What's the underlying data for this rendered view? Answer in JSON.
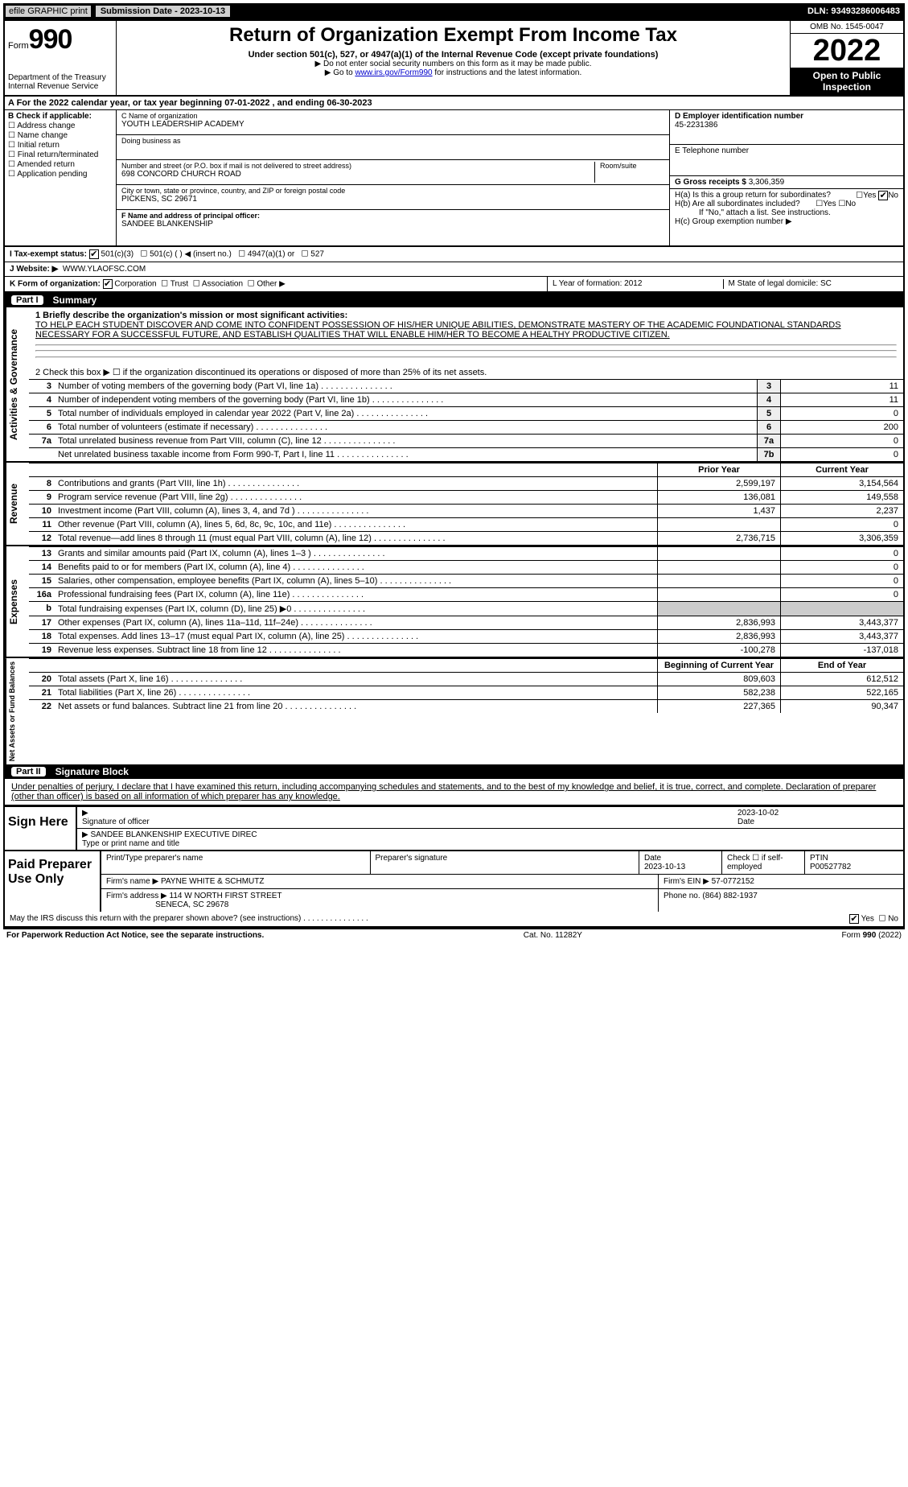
{
  "top": {
    "efile": "efile GRAPHIC print",
    "sub_label": "Submission Date - 2023-10-13",
    "dln": "DLN: 93493286006483"
  },
  "header": {
    "form_label": "Form",
    "form_number": "990",
    "dept1": "Department of the Treasury",
    "dept2": "Internal Revenue Service",
    "title": "Return of Organization Exempt From Income Tax",
    "subtitle": "Under section 501(c), 527, or 4947(a)(1) of the Internal Revenue Code (except private foundations)",
    "note1": "▶ Do not enter social security numbers on this form as it may be made public.",
    "note2_pre": "▶ Go to ",
    "note2_link": "www.irs.gov/Form990",
    "note2_post": " for instructions and the latest information.",
    "omb": "OMB No. 1545-0047",
    "year": "2022",
    "open": "Open to Public Inspection"
  },
  "line_a": {
    "text": "A For the 2022 calendar year, or tax year beginning 07-01-2022     , and ending 06-30-2023"
  },
  "col_b": {
    "head": "B Check if applicable:",
    "opts": [
      "Address change",
      "Name change",
      "Initial return",
      "Final return/terminated",
      "Amended return",
      "Application pending"
    ]
  },
  "col_c": {
    "name_lbl": "C Name of organization",
    "name": "YOUTH LEADERSHIP ACADEMY",
    "dba_lbl": "Doing business as",
    "addr_lbl": "Number and street (or P.O. box if mail is not delivered to street address)",
    "room_lbl": "Room/suite",
    "addr": "698 CONCORD CHURCH ROAD",
    "city_lbl": "City or town, state or province, country, and ZIP or foreign postal code",
    "city": "PICKENS, SC  29671",
    "f_lbl": "F Name and address of principal officer:",
    "f_name": "SANDEE BLANKENSHIP"
  },
  "col_right": {
    "d_lbl": "D Employer identification number",
    "d_val": "45-2231386",
    "e_lbl": "E Telephone number",
    "g_lbl": "G Gross receipts $",
    "g_val": "3,306,359",
    "h_a": "H(a)  Is this a group return for subordinates?",
    "h_b": "H(b)  Are all subordinates included?",
    "h_b_note": "If \"No,\" attach a list. See instructions.",
    "h_c": "H(c)  Group exemption number ▶",
    "yes": "Yes",
    "no": "No"
  },
  "row_i": {
    "label": "I   Tax-exempt status:",
    "o1": "501(c)(3)",
    "o2": "501(c) (   ) ◀ (insert no.)",
    "o3": "4947(a)(1) or",
    "o4": "527"
  },
  "row_j": {
    "label": "J   Website: ▶",
    "val": "WWW.YLAOFSC.COM"
  },
  "row_k": {
    "label": "K Form of organization:",
    "o1": "Corporation",
    "o2": "Trust",
    "o3": "Association",
    "o4": "Other ▶",
    "l": "L Year of formation: 2012",
    "m": "M State of legal domicile: SC"
  },
  "part1": {
    "title": "Part I",
    "name": "Summary",
    "l1_lbl": "1  Briefly describe the organization's mission or most significant activities:",
    "l1_val": "TO HELP EACH STUDENT DISCOVER AND COME INTO CONFIDENT POSSESSION OF HIS/HER UNIQUE ABILITIES, DEMONSTRATE MASTERY OF THE ACADEMIC FOUNDATIONAL STANDARDS NECESSARY FOR A SUCCESSFUL FUTURE, AND ESTABLISH QUALITIES THAT WILL ENABLE HIM/HER TO BECOME A HEALTHY PRODUCTIVE CITIZEN.",
    "l2": "2   Check this box ▶ ☐ if the organization discontinued its operations or disposed of more than 25% of its net assets.",
    "rows_gov": [
      {
        "n": "3",
        "d": "Number of voting members of the governing body (Part VI, line 1a)",
        "box": "3",
        "v": "11"
      },
      {
        "n": "4",
        "d": "Number of independent voting members of the governing body (Part VI, line 1b)",
        "box": "4",
        "v": "11"
      },
      {
        "n": "5",
        "d": "Total number of individuals employed in calendar year 2022 (Part V, line 2a)",
        "box": "5",
        "v": "0"
      },
      {
        "n": "6",
        "d": "Total number of volunteers (estimate if necessary)",
        "box": "6",
        "v": "200"
      },
      {
        "n": "7a",
        "d": "Total unrelated business revenue from Part VIII, column (C), line 12",
        "box": "7a",
        "v": "0"
      },
      {
        "n": "",
        "d": "Net unrelated business taxable income from Form 990-T, Part I, line 11",
        "box": "7b",
        "v": "0"
      }
    ],
    "tab_gov": "Activities & Governance",
    "tab_rev": "Revenue",
    "tab_exp": "Expenses",
    "tab_net": "Net Assets or Fund Balances",
    "col_prior": "Prior Year",
    "col_curr": "Current Year",
    "col_beg": "Beginning of Current Year",
    "col_end": "End of Year",
    "rows_rev": [
      {
        "n": "8",
        "d": "Contributions and grants (Part VIII, line 1h)",
        "p": "2,599,197",
        "c": "3,154,564"
      },
      {
        "n": "9",
        "d": "Program service revenue (Part VIII, line 2g)",
        "p": "136,081",
        "c": "149,558"
      },
      {
        "n": "10",
        "d": "Investment income (Part VIII, column (A), lines 3, 4, and 7d )",
        "p": "1,437",
        "c": "2,237"
      },
      {
        "n": "11",
        "d": "Other revenue (Part VIII, column (A), lines 5, 6d, 8c, 9c, 10c, and 11e)",
        "p": "",
        "c": "0"
      },
      {
        "n": "12",
        "d": "Total revenue—add lines 8 through 11 (must equal Part VIII, column (A), line 12)",
        "p": "2,736,715",
        "c": "3,306,359"
      }
    ],
    "rows_exp": [
      {
        "n": "13",
        "d": "Grants and similar amounts paid (Part IX, column (A), lines 1–3 )",
        "p": "",
        "c": "0"
      },
      {
        "n": "14",
        "d": "Benefits paid to or for members (Part IX, column (A), line 4)",
        "p": "",
        "c": "0"
      },
      {
        "n": "15",
        "d": "Salaries, other compensation, employee benefits (Part IX, column (A), lines 5–10)",
        "p": "",
        "c": "0"
      },
      {
        "n": "16a",
        "d": "Professional fundraising fees (Part IX, column (A), line 11e)",
        "p": "",
        "c": "0"
      },
      {
        "n": "b",
        "d": "Total fundraising expenses (Part IX, column (D), line 25) ▶0",
        "p": "—",
        "c": "—"
      },
      {
        "n": "17",
        "d": "Other expenses (Part IX, column (A), lines 11a–11d, 11f–24e)",
        "p": "2,836,993",
        "c": "3,443,377"
      },
      {
        "n": "18",
        "d": "Total expenses. Add lines 13–17 (must equal Part IX, column (A), line 25)",
        "p": "2,836,993",
        "c": "3,443,377"
      },
      {
        "n": "19",
        "d": "Revenue less expenses. Subtract line 18 from line 12",
        "p": "-100,278",
        "c": "-137,018"
      }
    ],
    "rows_net": [
      {
        "n": "20",
        "d": "Total assets (Part X, line 16)",
        "p": "809,603",
        "c": "612,512"
      },
      {
        "n": "21",
        "d": "Total liabilities (Part X, line 26)",
        "p": "582,238",
        "c": "522,165"
      },
      {
        "n": "22",
        "d": "Net assets or fund balances. Subtract line 21 from line 20",
        "p": "227,365",
        "c": "90,347"
      }
    ]
  },
  "part2": {
    "title": "Part II",
    "name": "Signature Block",
    "decl": "Under penalties of perjury, I declare that I have examined this return, including accompanying schedules and statements, and to the best of my knowledge and belief, it is true, correct, and complete. Declaration of preparer (other than officer) is based on all information of which preparer has any knowledge.",
    "sign_here": "Sign Here",
    "sig_off": "Signature of officer",
    "date": "Date",
    "date_val": "2023-10-02",
    "typed": "SANDEE BLANKENSHIP  EXECUTIVE DIREC",
    "typed_lbl": "Type or print name and title",
    "paid": "Paid Preparer Use Only",
    "pp_name_lbl": "Print/Type preparer's name",
    "pp_sig_lbl": "Preparer's signature",
    "pp_date_lbl": "Date",
    "pp_date": "2023-10-13",
    "pp_check": "Check ☐ if self-employed",
    "ptin_lbl": "PTIN",
    "ptin": "P00527782",
    "firm_name_lbl": "Firm's name    ▶",
    "firm_name": "PAYNE WHITE & SCHMUTZ",
    "firm_ein_lbl": "Firm's EIN ▶",
    "firm_ein": "57-0772152",
    "firm_addr_lbl": "Firm's address ▶",
    "firm_addr1": "114 W NORTH FIRST STREET",
    "firm_addr2": "SENECA, SC  29678",
    "phone_lbl": "Phone no.",
    "phone": "(864) 882-1937",
    "discuss": "May the IRS discuss this return with the preparer shown above? (see instructions)"
  },
  "footer": {
    "left": "For Paperwork Reduction Act Notice, see the separate instructions.",
    "mid": "Cat. No. 11282Y",
    "right": "Form 990 (2022)"
  }
}
